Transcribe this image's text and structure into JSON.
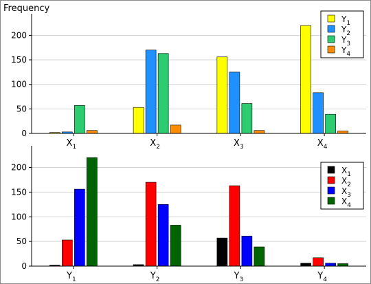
{
  "chart_data": [
    {
      "type": "bar",
      "ylabel": "Frequency",
      "categories": [
        {
          "base": "X",
          "sub": "1"
        },
        {
          "base": "X",
          "sub": "2"
        },
        {
          "base": "X",
          "sub": "3"
        },
        {
          "base": "X",
          "sub": "4"
        }
      ],
      "series": [
        {
          "name": {
            "base": "Y",
            "sub": "1"
          },
          "color": "#ffff00",
          "values": [
            2,
            53,
            156,
            220
          ]
        },
        {
          "name": {
            "base": "Y",
            "sub": "2"
          },
          "color": "#1e90ff",
          "values": [
            3,
            170,
            125,
            83
          ]
        },
        {
          "name": {
            "base": "Y",
            "sub": "3"
          },
          "color": "#2ecc71",
          "values": [
            57,
            163,
            61,
            39
          ]
        },
        {
          "name": {
            "base": "Y",
            "sub": "4"
          },
          "color": "#ff8c00",
          "values": [
            6,
            17,
            6,
            5
          ]
        }
      ],
      "ylim": [
        0,
        230
      ],
      "yticks": [
        0,
        50,
        100,
        150,
        200
      ],
      "grid": true,
      "legend": "top-right"
    },
    {
      "type": "bar",
      "ylabel": "",
      "categories": [
        {
          "base": "Y",
          "sub": "1"
        },
        {
          "base": "Y",
          "sub": "2"
        },
        {
          "base": "Y",
          "sub": "3"
        },
        {
          "base": "Y",
          "sub": "4"
        }
      ],
      "series": [
        {
          "name": {
            "base": "X",
            "sub": "1"
          },
          "color": "#000000",
          "values": [
            2,
            3,
            57,
            6
          ]
        },
        {
          "name": {
            "base": "X",
            "sub": "2"
          },
          "color": "#ff0000",
          "values": [
            53,
            170,
            163,
            17
          ]
        },
        {
          "name": {
            "base": "X",
            "sub": "3"
          },
          "color": "#0000ff",
          "values": [
            156,
            125,
            61,
            6
          ]
        },
        {
          "name": {
            "base": "X",
            "sub": "4"
          },
          "color": "#006400",
          "values": [
            220,
            83,
            39,
            5
          ]
        }
      ],
      "ylim": [
        0,
        230
      ],
      "yticks": [
        0,
        50,
        100,
        150,
        200
      ],
      "grid": true,
      "legend": "top-right"
    }
  ]
}
